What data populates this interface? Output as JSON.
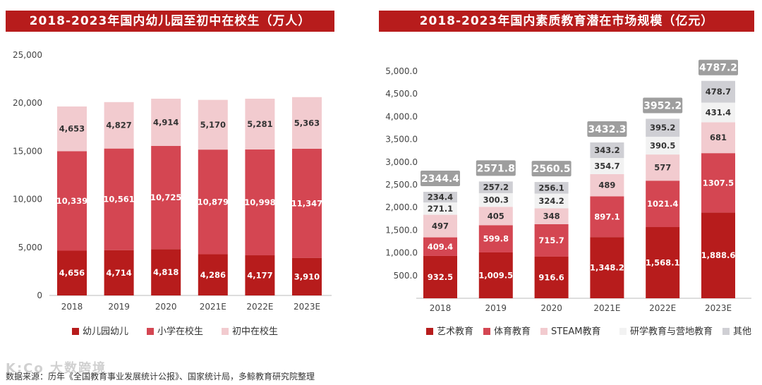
{
  "source_note": "数据来源：历年《全国教育事业发展统计公报》、国家统计局，多鲸教育研究院整理",
  "watermark": "K:Co 大数跨境",
  "colors": {
    "dark": "#b71c1c",
    "mid": "#d44652",
    "light": "#f2cbcf",
    "pale": "#f2f2f2",
    "grey": "#cfcfd4"
  },
  "chart_data": [
    {
      "type": "bar",
      "stacked": true,
      "title": "2018-2023年国内幼儿园至初中在校生（万人）",
      "categories": [
        "2018",
        "2019",
        "2020",
        "2021E",
        "2022E",
        "2023E"
      ],
      "ylim": [
        0,
        25000
      ],
      "yticks": [
        "0",
        "5,000",
        "10,000",
        "15,000",
        "20,000",
        "25,000"
      ],
      "ytick_values": [
        0,
        5000,
        10000,
        15000,
        20000,
        25000
      ],
      "series": [
        {
          "name": "幼儿园幼儿",
          "color": "#b71c1c",
          "label_color": "#ffffff",
          "values": [
            4656,
            4714,
            4818,
            4286,
            4177,
            3910
          ],
          "labels": [
            "4,656",
            "4,714",
            "4,818",
            "4,286",
            "4,177",
            "3,910"
          ]
        },
        {
          "name": "小学在校生",
          "color": "#d44652",
          "label_color": "#ffffff",
          "values": [
            10339,
            10561,
            10725,
            10879,
            10998,
            11347
          ],
          "labels": [
            "10,339",
            "10,561",
            "10,725",
            "10,879",
            "10,998",
            "11,347"
          ]
        },
        {
          "name": "初中在校生",
          "color": "#f2cbcf",
          "label_color": "#333333",
          "values": [
            4653,
            4827,
            4914,
            5170,
            5281,
            5363
          ],
          "labels": [
            "4,653",
            "4,827",
            "4,914",
            "5,170",
            "5,281",
            "5,363"
          ]
        }
      ]
    },
    {
      "type": "bar",
      "stacked": true,
      "title": "2018-2023年国内素质教育潜在市场规模（亿元）",
      "categories": [
        "2018",
        "2019",
        "2020",
        "2021E",
        "2022E",
        "2023E"
      ],
      "ylim": [
        0,
        5000
      ],
      "yticks": [
        "500.0",
        "1,000.0",
        "1,500.0",
        "2,000.0",
        "2,500.0",
        "3,000.0",
        "3,500.0",
        "4,000.0",
        "4,500.0",
        "5,000.0"
      ],
      "ytick_values": [
        500,
        1000,
        1500,
        2000,
        2500,
        3000,
        3500,
        4000,
        4500,
        5000
      ],
      "totals": [
        2344.4,
        2571.8,
        2560.5,
        3432.3,
        3952.2,
        4787.2
      ],
      "total_labels": [
        "2344.4",
        "2571.8",
        "2560.5",
        "3432.3",
        "3952.2",
        "4787.2"
      ],
      "series": [
        {
          "name": "艺术教育",
          "color": "#b71c1c",
          "label_color": "#ffffff",
          "values": [
            932.5,
            1009.5,
            916.6,
            1348.2,
            1568.1,
            1888.6
          ],
          "labels": [
            "932.5",
            "1,009.5",
            "916.6",
            "1,348.2",
            "1,568.1",
            "1,888.6"
          ]
        },
        {
          "name": "体育教育",
          "color": "#d44652",
          "label_color": "#ffffff",
          "values": [
            409.4,
            599.8,
            715.7,
            897.1,
            1021.4,
            1307.5
          ],
          "labels": [
            "409.4",
            "599.8",
            "715.7",
            "897.1",
            "1021.4",
            "1307.5"
          ]
        },
        {
          "name": "STEAM教育",
          "color": "#f2cbcf",
          "label_color": "#333333",
          "values": [
            497,
            405,
            348,
            489,
            577,
            681
          ],
          "labels": [
            "497",
            "405",
            "348",
            "489",
            "577",
            "681"
          ]
        },
        {
          "name": "研学教育与营地教育",
          "color": "#f2f2f2",
          "label_color": "#333333",
          "values": [
            271.1,
            300.3,
            324.2,
            354.7,
            390.5,
            431.4
          ],
          "labels": [
            "271.1",
            "300.3",
            "324.2",
            "354.7",
            "390.5",
            "431.4"
          ]
        },
        {
          "name": "其他",
          "color": "#cfcfd4",
          "label_color": "#333333",
          "values": [
            234.4,
            257.2,
            256.1,
            343.2,
            395.2,
            478.7
          ],
          "labels": [
            "234.4",
            "257.2",
            "256.1",
            "343.2",
            "395.2",
            "478.7"
          ]
        }
      ]
    }
  ]
}
